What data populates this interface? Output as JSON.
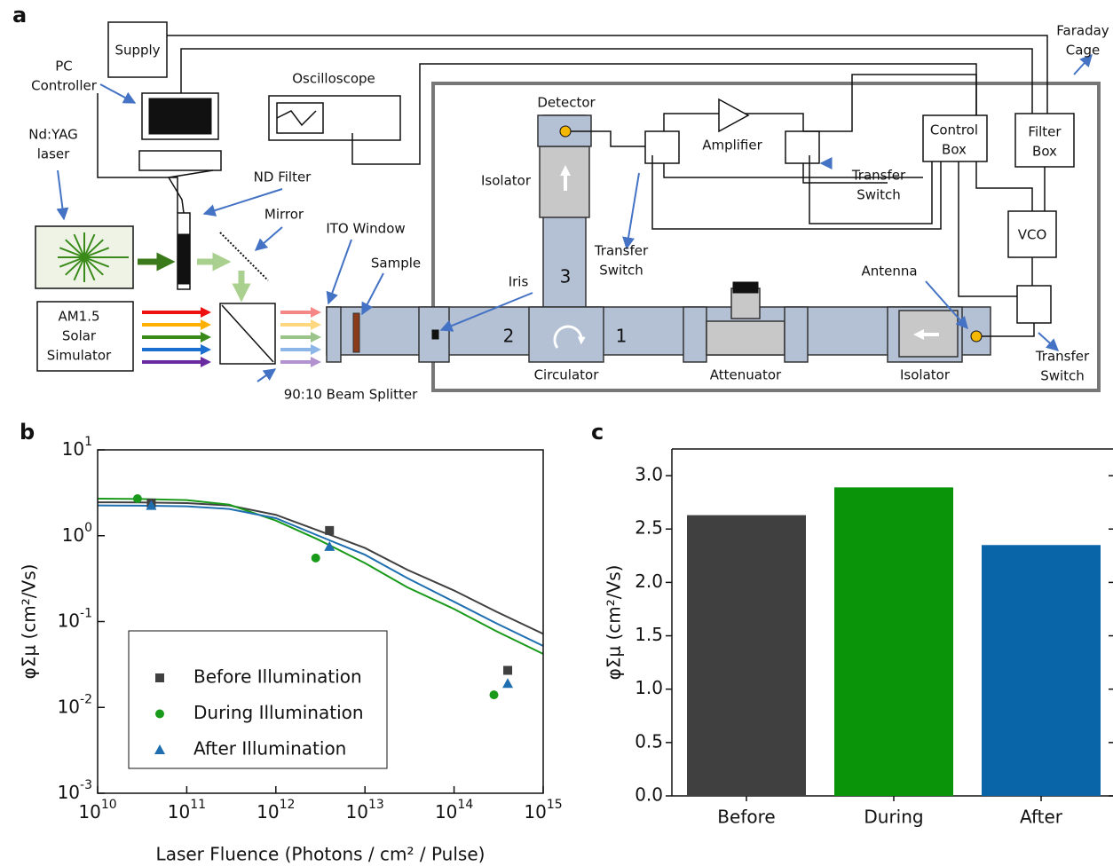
{
  "panel_labels": [
    "a",
    "b",
    "c"
  ],
  "diagram": {
    "labels": [
      [
        "Supply"
      ],
      [
        "PC",
        "Controller"
      ],
      [
        "Nd:YAG",
        "laser"
      ],
      [
        "Oscilloscope"
      ],
      [
        "ND Filter"
      ],
      [
        "Mirror"
      ],
      [
        "ITO Window"
      ],
      [
        "Sample"
      ],
      [
        "AM1.5",
        "Solar",
        "Simulator"
      ],
      [
        "90:10 Beam Splitter"
      ],
      [
        "Detector"
      ],
      [
        "Isolator"
      ],
      [
        "Amplifier"
      ],
      [
        "Transfer",
        "Switch"
      ],
      [
        "Transfer",
        "Switch"
      ],
      [
        "Control",
        "Box"
      ],
      [
        "Filter",
        "Box"
      ],
      [
        "VCO"
      ],
      [
        "Faraday",
        "Cage"
      ],
      [
        "Antenna"
      ],
      [
        "Iris"
      ],
      [
        "3"
      ],
      [
        "2"
      ],
      [
        "1"
      ],
      [
        "Circulator"
      ],
      [
        "Attenuator"
      ],
      [
        "Isolator"
      ],
      [
        "Transfer",
        "Switch"
      ]
    ]
  },
  "chart_data": [
    {
      "type": "scatter",
      "log_x": true,
      "log_y": true,
      "xlabel": "Laser Fluence (Photons / cm² / Pulse)",
      "ylabel": "φΣμ (cm²/Vs)",
      "xlim": [
        10000000000.0,
        1000000000000000.0
      ],
      "ylim": [
        0.001,
        10
      ],
      "xticks": [
        {
          "value": 10000000000.0,
          "label": "10",
          "exponent": "10"
        },
        {
          "value": 100000000000.0,
          "label": "10",
          "exponent": "11"
        },
        {
          "value": 1000000000000.0,
          "label": "10",
          "exponent": "12"
        },
        {
          "value": 10000000000000.0,
          "label": "10",
          "exponent": "13"
        },
        {
          "value": 100000000000000.0,
          "label": "10",
          "exponent": "14"
        },
        {
          "value": 1000000000000000.0,
          "label": "10",
          "exponent": "15"
        }
      ],
      "yticks": [
        {
          "value": 0.001,
          "label": "10",
          "exponent": "-3"
        },
        {
          "value": 0.01,
          "label": "10",
          "exponent": "-2"
        },
        {
          "value": 0.1,
          "label": "10",
          "exponent": "-1"
        },
        {
          "value": 1,
          "label": "10",
          "exponent": "0"
        },
        {
          "value": 10,
          "label": "10",
          "exponent": "1"
        }
      ],
      "legend": "lower left",
      "series": [
        {
          "name": "Before Illumination",
          "color": "#404040",
          "marker": "square",
          "x": [
            40000000000.0,
            4000000000000.0,
            400000000000000.0
          ],
          "values": [
            2.4,
            1.15,
            0.027
          ]
        },
        {
          "name": "During Illumination",
          "color": "#1a9a1a",
          "marker": "circle",
          "x": [
            28000000000.0,
            2800000000000.0,
            280000000000000.0
          ],
          "values": [
            2.7,
            0.55,
            0.014
          ]
        },
        {
          "name": "After Illumination",
          "color": "#1f6fb0",
          "marker": "triangle",
          "x": [
            40000000000.0,
            4000000000000.0,
            400000000000000.0
          ],
          "values": [
            2.25,
            0.75,
            0.019
          ]
        }
      ],
      "fit_x": [
        10000000000.0,
        30000000000.0,
        100000000000.0,
        300000000000.0,
        1000000000000.0,
        3000000000000.0,
        10000000000000.0,
        30000000000000.0,
        100000000000000.0,
        300000000000000.0,
        1000000000000000.0
      ],
      "fits": [
        {
          "color": "#404040",
          "values": [
            2.45,
            2.44,
            2.4,
            2.25,
            1.75,
            1.15,
            0.72,
            0.4,
            0.23,
            0.13,
            0.072
          ]
        },
        {
          "color": "#1a9a1a",
          "values": [
            2.7,
            2.68,
            2.6,
            2.3,
            1.5,
            0.9,
            0.48,
            0.25,
            0.14,
            0.077,
            0.042
          ]
        },
        {
          "color": "#1f6fb0",
          "values": [
            2.25,
            2.24,
            2.2,
            2.05,
            1.6,
            1.0,
            0.6,
            0.32,
            0.17,
            0.095,
            0.052
          ]
        }
      ]
    },
    {
      "type": "bar",
      "ylabel": "φΣμ (cm²/Vs)",
      "categories": [
        "Before",
        "During",
        "After"
      ],
      "values": [
        2.63,
        2.89,
        2.35
      ],
      "colors": [
        "#404040",
        "#0a940a",
        "#0a64a8"
      ],
      "ylim": [
        0,
        3.25
      ],
      "yticks": [
        {
          "value": 0,
          "label": "0.0"
        },
        {
          "value": 0.5,
          "label": "0.5"
        },
        {
          "value": 1,
          "label": "1.0"
        },
        {
          "value": 1.5,
          "label": "1.5"
        },
        {
          "value": 2,
          "label": "2.0"
        },
        {
          "value": 2.5,
          "label": "2.5"
        },
        {
          "value": 3,
          "label": "3.0"
        }
      ]
    }
  ]
}
